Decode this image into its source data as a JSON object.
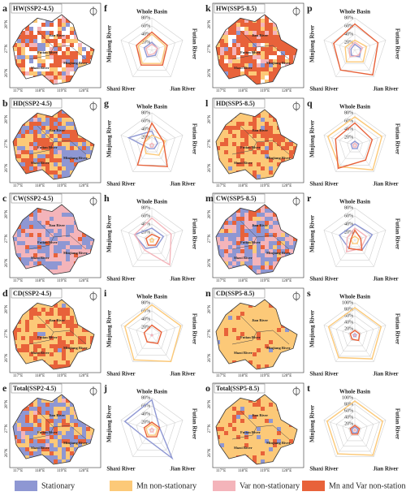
{
  "maps": [
    {
      "label": "a",
      "title": "HW(SSP2-4.5)"
    },
    {
      "label": "b",
      "title": "HD(SSP2-4.5)"
    },
    {
      "label": "c",
      "title": "CW(SSP2-4.5)"
    },
    {
      "label": "d",
      "title": "CD(SSP2-4.5)"
    },
    {
      "label": "e",
      "title": "Total(SSP2-4.5)"
    },
    {
      "label": "k",
      "title": "HW(SSP5-8.5)"
    },
    {
      "label": "l",
      "title": "HD(SSP5-8.5)"
    },
    {
      "label": "m",
      "title": "CW(SSP5-8.5)"
    },
    {
      "label": "n",
      "title": "CD(SSP5-8.5)"
    },
    {
      "label": "o",
      "title": "Total(SSP5-8.5)"
    }
  ],
  "map_labels": {
    "lat": [
      "26°N",
      "27°N",
      "28°N"
    ],
    "lon": [
      "117°E",
      "118°E",
      "119°E",
      "120°E"
    ],
    "rivers": [
      "Jian River",
      "Futian River",
      "Minjiang River",
      "Shaxi River"
    ]
  },
  "chart_data": [
    {
      "type": "radar",
      "label": "f",
      "categories": [
        "Whole Basin",
        "Futian River",
        "Jian River",
        "Shaxi River",
        "Minjiang River"
      ],
      "ylim": [
        0,
        80
      ],
      "yticks": [
        {
          "value": 20,
          "label": "20%"
        },
        {
          "value": 40,
          "label": "40%"
        },
        {
          "value": 60,
          "label": "60%"
        },
        {
          "value": 80,
          "label": "80%"
        }
      ],
      "series": [
        {
          "name": "Stationary",
          "color": "#8e97d3",
          "values": [
            20,
            15,
            15,
            20,
            20
          ]
        },
        {
          "name": "Mn non-stationary",
          "color": "#fcc978",
          "values": [
            40,
            35,
            40,
            40,
            35
          ]
        },
        {
          "name": "Var non-stationary",
          "color": "#f4b4ba",
          "values": [
            15,
            15,
            10,
            15,
            15
          ]
        },
        {
          "name": "Mn and Var non-stationary",
          "color": "#e8623a",
          "values": [
            45,
            40,
            45,
            45,
            40
          ]
        }
      ]
    },
    {
      "type": "radar",
      "label": "g",
      "categories": [
        "Whole Basin",
        "Futian River",
        "Jian River",
        "Shaxi River",
        "Minjiang River"
      ],
      "ylim": [
        0,
        80
      ],
      "yticks": [
        {
          "value": 20,
          "label": "20%"
        },
        {
          "value": 40,
          "label": "40%"
        },
        {
          "value": 60,
          "label": "60%"
        },
        {
          "value": 80,
          "label": "80%"
        }
      ],
      "series": [
        {
          "name": "Stationary",
          "color": "#8e97d3",
          "values": [
            35,
            15,
            10,
            10,
            60
          ]
        },
        {
          "name": "Mn non-stationary",
          "color": "#fcc978",
          "values": [
            25,
            35,
            30,
            25,
            20
          ]
        },
        {
          "name": "Var non-stationary",
          "color": "#f4b4ba",
          "values": [
            5,
            5,
            5,
            5,
            5
          ]
        },
        {
          "name": "Mn and Var non-stationary",
          "color": "#e8623a",
          "values": [
            55,
            30,
            65,
            60,
            20
          ]
        }
      ]
    },
    {
      "type": "radar",
      "label": "h",
      "categories": [
        "Whole Basin",
        "Futian River",
        "Jian River",
        "Shaxi River",
        "Minjiang River"
      ],
      "ylim": [
        0,
        80
      ],
      "yticks": [
        {
          "value": 20,
          "label": "20%"
        },
        {
          "value": 40,
          "label": "40%"
        },
        {
          "value": 60,
          "label": "60%"
        },
        {
          "value": 80,
          "label": "80%"
        }
      ],
      "series": [
        {
          "name": "Stationary",
          "color": "#8e97d3",
          "values": [
            30,
            30,
            20,
            25,
            45
          ]
        },
        {
          "name": "Mn non-stationary",
          "color": "#fcc978",
          "values": [
            5,
            5,
            5,
            5,
            5
          ]
        },
        {
          "name": "Var non-stationary",
          "color": "#f4b4ba",
          "values": [
            55,
            50,
            75,
            30,
            45
          ]
        },
        {
          "name": "Mn and Var non-stationary",
          "color": "#e8623a",
          "values": [
            15,
            20,
            15,
            15,
            15
          ]
        }
      ]
    },
    {
      "type": "radar",
      "label": "i",
      "categories": [
        "Whole Basin",
        "Futian River",
        "Jian River",
        "Shaxi River",
        "Minjiang River"
      ],
      "ylim": [
        0,
        80
      ],
      "yticks": [
        {
          "value": 20,
          "label": "20%"
        },
        {
          "value": 40,
          "label": "40%"
        },
        {
          "value": 60,
          "label": "60%"
        },
        {
          "value": 80,
          "label": "80%"
        }
      ],
      "series": [
        {
          "name": "Stationary",
          "color": "#8e97d3",
          "values": [
            2,
            2,
            2,
            2,
            2
          ]
        },
        {
          "name": "Mn non-stationary",
          "color": "#fcc978",
          "values": [
            75,
            75,
            80,
            75,
            70
          ]
        },
        {
          "name": "Var non-stationary",
          "color": "#f4b4ba",
          "values": [
            2,
            2,
            2,
            2,
            2
          ]
        },
        {
          "name": "Mn and Var non-stationary",
          "color": "#e8623a",
          "values": [
            25,
            25,
            25,
            20,
            20
          ]
        }
      ]
    },
    {
      "type": "radar",
      "label": "j",
      "categories": [
        "Whole Basin",
        "Futian River",
        "Jian River",
        "Shaxi River",
        "Minjiang River"
      ],
      "ylim": [
        0,
        80
      ],
      "yticks": [
        {
          "value": 20,
          "label": "20%"
        },
        {
          "value": 40,
          "label": "40%"
        },
        {
          "value": 60,
          "label": "60%"
        },
        {
          "value": 80,
          "label": "80%"
        }
      ],
      "series": [
        {
          "name": "Stationary",
          "color": "#8e97d3",
          "values": [
            75,
            20,
            85,
            25,
            70
          ]
        },
        {
          "name": "Mn non-stationary",
          "color": "#fcc978",
          "values": [
            15,
            15,
            15,
            15,
            15
          ]
        },
        {
          "name": "Var non-stationary",
          "color": "#f4b4ba",
          "values": [
            5,
            5,
            5,
            5,
            5
          ]
        },
        {
          "name": "Mn and Var non-stationary",
          "color": "#e8623a",
          "values": [
            20,
            20,
            20,
            20,
            20
          ]
        }
      ]
    },
    {
      "type": "radar",
      "label": "p",
      "categories": [
        "Whole Basin",
        "Futian River",
        "Jian River",
        "Shaxi River",
        "Minjiang River"
      ],
      "ylim": [
        0,
        80
      ],
      "yticks": [
        {
          "value": 20,
          "label": "20%"
        },
        {
          "value": 40,
          "label": "40%"
        },
        {
          "value": 60,
          "label": "60%"
        },
        {
          "value": 80,
          "label": "80%"
        }
      ],
      "series": [
        {
          "name": "Stationary",
          "color": "#8e97d3",
          "values": [
            15,
            15,
            20,
            15,
            10
          ]
        },
        {
          "name": "Mn non-stationary",
          "color": "#fcc978",
          "values": [
            25,
            30,
            35,
            35,
            25
          ]
        },
        {
          "name": "Var non-stationary",
          "color": "#f4b4ba",
          "values": [
            20,
            20,
            15,
            20,
            15
          ]
        },
        {
          "name": "Mn and Var non-stationary",
          "color": "#e8623a",
          "values": [
            65,
            60,
            75,
            60,
            55
          ]
        }
      ]
    },
    {
      "type": "radar",
      "label": "q",
      "categories": [
        "Whole Basin",
        "Futian River",
        "Jian River",
        "Shaxi River",
        "Minjiang River"
      ],
      "ylim": [
        0,
        80
      ],
      "yticks": [
        {
          "value": 20,
          "label": "20%"
        },
        {
          "value": 40,
          "label": "40%"
        },
        {
          "value": 60,
          "label": "60%"
        },
        {
          "value": 80,
          "label": "80%"
        }
      ],
      "series": [
        {
          "name": "Stationary",
          "color": "#8e97d3",
          "values": [
            10,
            10,
            10,
            10,
            10
          ]
        },
        {
          "name": "Mn non-stationary",
          "color": "#fcc978",
          "values": [
            70,
            70,
            75,
            65,
            70
          ]
        },
        {
          "name": "Var non-stationary",
          "color": "#f4b4ba",
          "values": [
            5,
            5,
            5,
            5,
            5
          ]
        },
        {
          "name": "Mn and Var non-stationary",
          "color": "#e8623a",
          "values": [
            55,
            45,
            45,
            70,
            50
          ]
        }
      ]
    },
    {
      "type": "radar",
      "label": "r",
      "categories": [
        "Whole Basin",
        "Futian River",
        "Jian River",
        "Shaxi River",
        "Minjiang River"
      ],
      "ylim": [
        0,
        80
      ],
      "yticks": [
        {
          "value": 20,
          "label": "20%"
        },
        {
          "value": 40,
          "label": "40%"
        },
        {
          "value": 60,
          "label": "60%"
        },
        {
          "value": 80,
          "label": "80%"
        }
      ],
      "series": [
        {
          "name": "Stationary",
          "color": "#8e97d3",
          "values": [
            40,
            45,
            30,
            25,
            40
          ]
        },
        {
          "name": "Mn non-stationary",
          "color": "#fcc978",
          "values": [
            10,
            10,
            10,
            10,
            10
          ]
        },
        {
          "name": "Var non-stationary",
          "color": "#f4b4ba",
          "values": [
            30,
            30,
            25,
            35,
            20
          ]
        },
        {
          "name": "Mn and Var non-stationary",
          "color": "#e8623a",
          "values": [
            25,
            15,
            30,
            25,
            10
          ]
        }
      ]
    },
    {
      "type": "radar",
      "label": "s",
      "categories": [
        "Whole Basin",
        "Futian River",
        "Jian River",
        "Shaxi River",
        "Minjiang River"
      ],
      "ylim": [
        0,
        100
      ],
      "yticks": [
        {
          "value": 20,
          "label": "20%"
        },
        {
          "value": 40,
          "label": "40%"
        },
        {
          "value": 60,
          "label": "60%"
        },
        {
          "value": 80,
          "label": "80%"
        },
        {
          "value": 100,
          "label": "100%"
        }
      ],
      "series": [
        {
          "name": "Stationary",
          "color": "#8e97d3",
          "values": [
            5,
            5,
            5,
            5,
            5
          ]
        },
        {
          "name": "Mn non-stationary",
          "color": "#fcc978",
          "values": [
            85,
            85,
            90,
            85,
            85
          ]
        },
        {
          "name": "Var non-stationary",
          "color": "#f4b4ba",
          "values": [
            3,
            3,
            3,
            3,
            3
          ]
        },
        {
          "name": "Mn and Var non-stationary",
          "color": "#e8623a",
          "values": [
            15,
            15,
            20,
            15,
            15
          ]
        }
      ]
    },
    {
      "type": "radar",
      "label": "t",
      "categories": [
        "Whole Basin",
        "Futian River",
        "Jian River",
        "Shaxi River",
        "Minjiang River"
      ],
      "ylim": [
        0,
        100
      ],
      "yticks": [
        {
          "value": 20,
          "label": "20%"
        },
        {
          "value": 40,
          "label": "40%"
        },
        {
          "value": 60,
          "label": "60%"
        },
        {
          "value": 80,
          "label": "80%"
        },
        {
          "value": 100,
          "label": "100%"
        }
      ],
      "series": [
        {
          "name": "Stationary",
          "color": "#8e97d3",
          "values": [
            10,
            10,
            10,
            10,
            10
          ]
        },
        {
          "name": "Mn non-stationary",
          "color": "#fcc978",
          "values": [
            90,
            90,
            95,
            90,
            90
          ]
        },
        {
          "name": "Var non-stationary",
          "color": "#f4b4ba",
          "values": [
            3,
            3,
            3,
            3,
            3
          ]
        },
        {
          "name": "Mn and Var non-stationary",
          "color": "#e8623a",
          "values": [
            15,
            15,
            15,
            15,
            15
          ]
        }
      ]
    }
  ]
}
